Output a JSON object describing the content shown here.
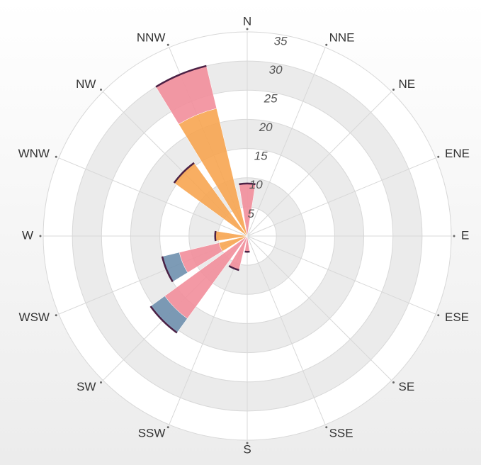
{
  "chart_data": {
    "type": "polar-stacked-bar",
    "categories": [
      "N",
      "NNE",
      "NE",
      "ENE",
      "E",
      "ESE",
      "SE",
      "SSE",
      "S",
      "SSW",
      "SW",
      "WSW",
      "W",
      "WNW",
      "NW",
      "NNW"
    ],
    "series": [
      {
        "color": "#f7a551",
        "values": [
          0,
          0,
          0,
          0,
          0,
          0,
          0,
          0,
          0,
          0,
          0,
          5,
          5.5,
          0,
          15.5,
          22.5
        ]
      },
      {
        "color": "#f28e9b",
        "values": [
          9,
          0,
          0,
          0,
          0,
          0,
          0,
          0,
          2.7,
          6,
          17.5,
          7,
          0,
          0,
          0,
          7.5
        ]
      },
      {
        "color": "#6f90ae",
        "values": [
          0,
          0,
          0,
          0,
          0,
          0,
          0,
          0,
          0,
          0,
          3,
          3,
          0,
          0,
          0,
          0
        ]
      }
    ],
    "ylim": [
      0,
      35
    ],
    "yticks": [
      5,
      10,
      15,
      20,
      25,
      30,
      35
    ],
    "grid": true
  }
}
